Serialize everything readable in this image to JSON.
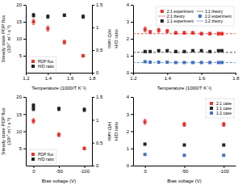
{
  "chart_data": [
    {
      "type": "scatter",
      "xlabel": "Temperature (1000/T K⁻¹)",
      "ylabel": "Steady state PDP flux\n(10¹⁷ m⁻² s⁻¹)",
      "y2label": "H/D ratio",
      "xlim": [
        1.2,
        1.8
      ],
      "xticks": [
        1.2,
        1.4,
        1.6,
        1.8
      ],
      "ylim": [
        0,
        20
      ],
      "yticks": [
        5,
        10,
        15,
        20
      ],
      "y2lim": [
        0,
        1.5
      ],
      "y2ticks": [
        0,
        0.5,
        1,
        1.5
      ],
      "grid": false,
      "legend": "lower left",
      "series": [
        {
          "name": "PDP flux",
          "color": "#e8312a",
          "marker": "square",
          "x": [
            1.27,
            1.4,
            1.55,
            1.72
          ],
          "values": [
            15.0,
            13.0,
            9.0,
            5.0
          ],
          "errors": [
            0.8,
            0.8,
            0.6,
            0.4
          ]
        },
        {
          "name": "H/D ratio",
          "color": "#222222",
          "marker": "square",
          "axis": "y2",
          "x": [
            1.27,
            1.4,
            1.55,
            1.72
          ],
          "values": [
            1.27,
            1.24,
            1.27,
            1.24
          ],
          "errors": [
            0.04,
            0.04,
            0.03,
            0.04
          ]
        }
      ]
    },
    {
      "type": "scatter",
      "xlabel": "Temperature (1000/T K⁻¹)",
      "ylabel": "H/D ratio",
      "xlim": [
        1.2,
        1.8
      ],
      "xticks": [
        1.2,
        1.4,
        1.6,
        1.8
      ],
      "ylim": [
        0,
        4
      ],
      "yticks": [
        0,
        1,
        2,
        3,
        4
      ],
      "grid": false,
      "legend": "upper right",
      "series": [
        {
          "name": "2:1 experiment",
          "color": "#e8312a",
          "marker": "square",
          "x": [
            1.27,
            1.3,
            1.35,
            1.4,
            1.45,
            1.5,
            1.55,
            1.6,
            1.65,
            1.7,
            1.72
          ],
          "values": [
            2.55,
            2.4,
            2.5,
            2.45,
            2.35,
            2.35,
            2.35,
            2.3,
            2.3,
            2.3,
            2.3
          ],
          "errors": [
            0.15,
            0.1,
            0.12,
            0.1,
            0.08,
            0.08,
            0.08,
            0.08,
            0.08,
            0.08,
            0.08
          ]
        },
        {
          "name": "2:1 theory",
          "type": "hline",
          "color": "#e8312a",
          "line_style": "dashed",
          "values": [
            2.3
          ]
        },
        {
          "name": "1:1 experiment",
          "color": "#222222",
          "marker": "square",
          "x": [
            1.27,
            1.3,
            1.35,
            1.4,
            1.45,
            1.5,
            1.55,
            1.6,
            1.65,
            1.7,
            1.72
          ],
          "values": [
            1.25,
            1.25,
            1.3,
            1.3,
            1.25,
            1.25,
            1.3,
            1.3,
            1.25,
            1.3,
            1.3
          ],
          "errors": [
            0.05,
            0.05,
            0.05,
            0.05,
            0.05,
            0.05,
            0.05,
            0.05,
            0.05,
            0.05,
            0.05
          ]
        },
        {
          "name": "1:1 theory",
          "type": "hline",
          "color": "#222222",
          "line_style": "dashed",
          "values": [
            1.2
          ]
        },
        {
          "name": "1:2 experiment",
          "color": "#4472c4",
          "marker": "square",
          "x": [
            1.27,
            1.3,
            1.35,
            1.4,
            1.45,
            1.5,
            1.55,
            1.6,
            1.65,
            1.7,
            1.72
          ],
          "values": [
            0.65,
            0.62,
            0.62,
            0.62,
            0.6,
            0.6,
            0.6,
            0.6,
            0.6,
            0.6,
            0.6
          ],
          "errors": [
            0.04,
            0.03,
            0.03,
            0.03,
            0.03,
            0.03,
            0.03,
            0.03,
            0.03,
            0.03,
            0.03
          ]
        },
        {
          "name": "1:2 theory",
          "type": "hline",
          "color": "#4472c4",
          "line_style": "dashed",
          "values": [
            0.6
          ]
        }
      ]
    },
    {
      "type": "scatter",
      "xlabel": "Bias voltage (V)",
      "ylabel": "Steady state PDP flux\n(10¹⁷ m⁻² s⁻¹)",
      "y2label": "H/D ratio",
      "xlim": [
        15,
        -115
      ],
      "xticks": [
        0,
        -50,
        -100
      ],
      "ylim": [
        0,
        20
      ],
      "yticks": [
        5,
        10,
        15,
        20
      ],
      "y2lim": [
        0,
        1.5
      ],
      "y2ticks": [
        0,
        0.5,
        1,
        1.5
      ],
      "grid": false,
      "legend": "lower left",
      "series": [
        {
          "name": "PDP flux",
          "color": "#e8312a",
          "marker": "square",
          "x": [
            0,
            -50,
            -100
          ],
          "values": [
            13.0,
            9.0,
            5.0
          ],
          "errors": [
            0.7,
            0.6,
            0.4
          ]
        },
        {
          "color": "#222222",
          "marker": "square",
          "x": [
            0
          ],
          "values": [
            17.5
          ],
          "errors": [
            0.5
          ]
        },
        {
          "name": "H/D ratio",
          "color": "#222222",
          "marker": "square",
          "axis": "y2",
          "x": [
            0,
            -50,
            -100
          ],
          "values": [
            1.24,
            1.24,
            1.22
          ],
          "errors": [
            0.04,
            0.04,
            0.04
          ]
        }
      ]
    },
    {
      "type": "scatter",
      "xlabel": "Bias voltage (V)",
      "ylabel": "H/D ratio",
      "xlim": [
        15,
        -115
      ],
      "xticks": [
        0,
        -50,
        -100
      ],
      "ylim": [
        0,
        4
      ],
      "yticks": [
        0,
        1,
        2,
        3,
        4
      ],
      "grid": false,
      "legend": "upper right",
      "series": [
        {
          "name": "2:1 case",
          "color": "#e8312a",
          "marker": "square",
          "x": [
            0,
            -50,
            -100
          ],
          "values": [
            2.55,
            2.4,
            2.4
          ],
          "errors": [
            0.15,
            0.12,
            0.12
          ]
        },
        {
          "name": "1:1 case",
          "color": "#222222",
          "marker": "square",
          "x": [
            0,
            -50,
            -100
          ],
          "values": [
            1.25,
            1.2,
            1.2
          ],
          "errors": [
            0.05,
            0.05,
            0.05
          ]
        },
        {
          "name": "1:2 case",
          "color": "#4472c4",
          "marker": "square",
          "x": [
            0,
            -50,
            -100
          ],
          "values": [
            0.65,
            0.6,
            0.6
          ],
          "errors": [
            0.04,
            0.03,
            0.03
          ]
        }
      ]
    }
  ]
}
